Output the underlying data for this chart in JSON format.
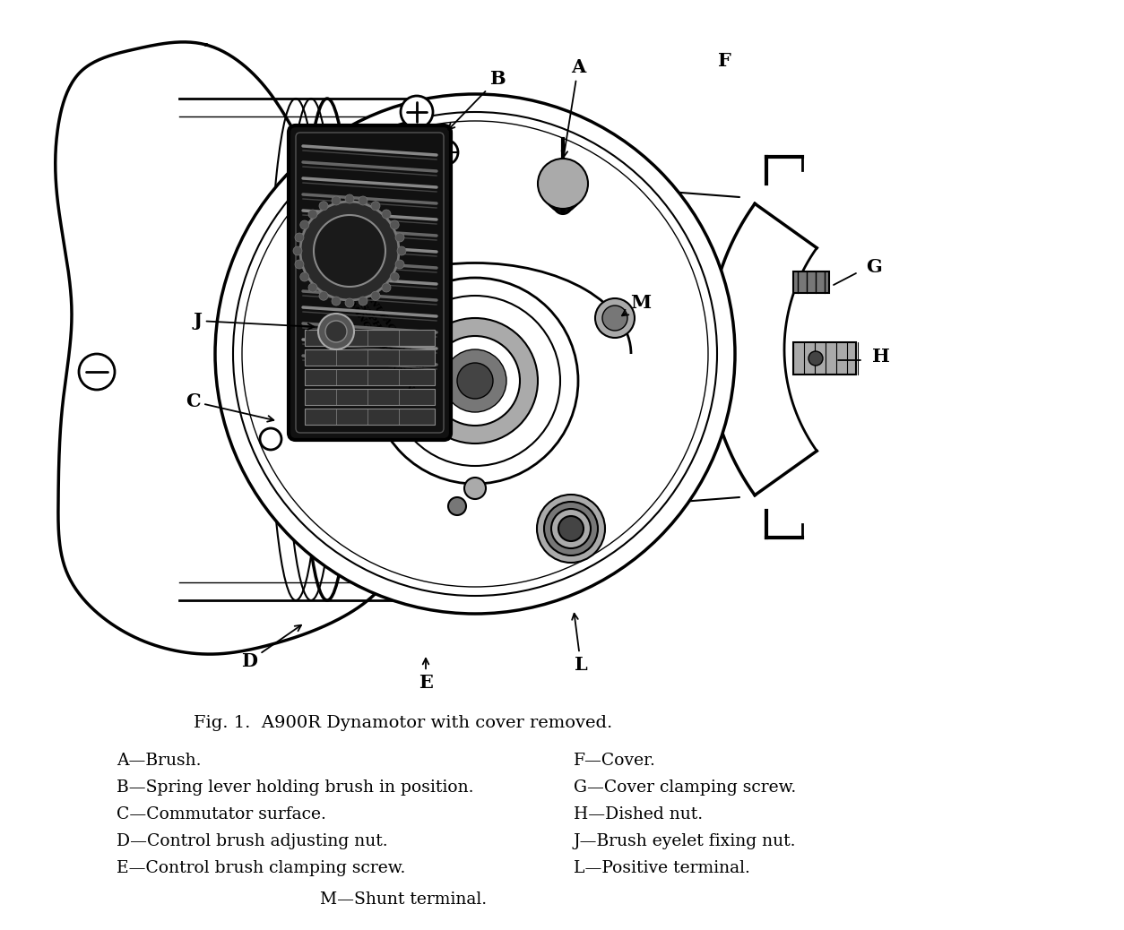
{
  "fig_caption": "Fig. 1.  A900R Dynamotor with cover removed.",
  "background_color": "#ffffff",
  "text_color": "#000000",
  "labels_left": [
    "A—Brush.",
    "B—Spring lever holding brush in position.",
    "C—Commutator surface.",
    "D—Control brush adjusting nut.",
    "E—Control brush clamping screw."
  ],
  "labels_right": [
    "F—Cover.",
    "G—Cover clamping screw.",
    "H—Dished nut.",
    "J—Brush eyelet fixing nut.",
    "L—Positive terminal."
  ],
  "label_center": "M—Shunt terminal.",
  "font_size_labels": 13.5,
  "font_size_caption": 14,
  "font_size_diagram_labels": 15
}
